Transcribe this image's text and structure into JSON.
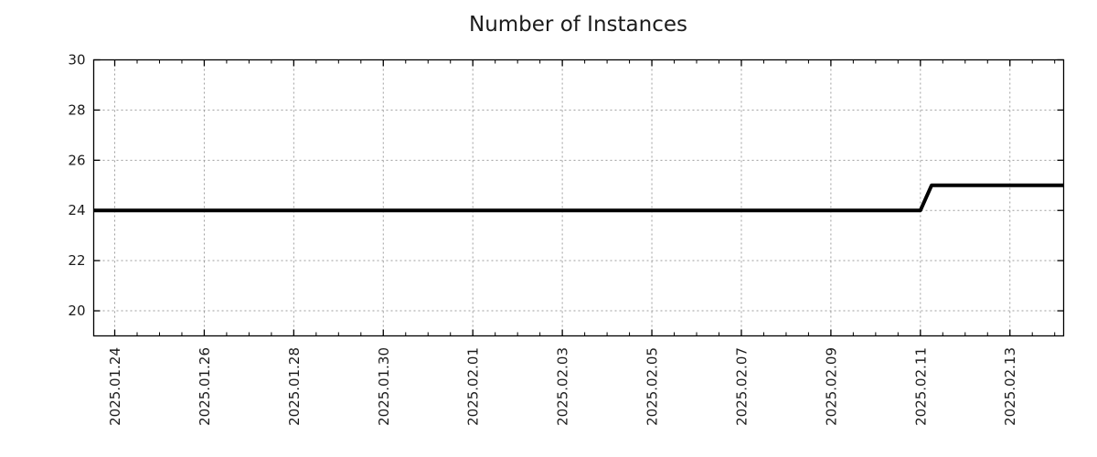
{
  "chart_data": {
    "type": "line",
    "title": "Number of Instances",
    "xlabel": "",
    "ylabel": "",
    "x_axis": {
      "days_origin": "2025.01.24",
      "range_days": [
        -0.47,
        21.2
      ],
      "minor_tick_step_days": 0.5,
      "ticks": [
        {
          "days": 0,
          "label": "2025.01.24"
        },
        {
          "days": 2,
          "label": "2025.01.26"
        },
        {
          "days": 4,
          "label": "2025.01.28"
        },
        {
          "days": 6,
          "label": "2025.01.30"
        },
        {
          "days": 8,
          "label": "2025.02.01"
        },
        {
          "days": 10,
          "label": "2025.02.03"
        },
        {
          "days": 12,
          "label": "2025.02.05"
        },
        {
          "days": 14,
          "label": "2025.02.07"
        },
        {
          "days": 16,
          "label": "2025.02.09"
        },
        {
          "days": 18,
          "label": "2025.02.11"
        },
        {
          "days": 20,
          "label": "2025.02.13"
        }
      ]
    },
    "y_axis": {
      "range": [
        19,
        30
      ],
      "ticks": [
        20,
        22,
        24,
        26,
        28,
        30
      ]
    },
    "grid": {
      "enabled": true,
      "style": "dotted",
      "color": "#9e9e9e"
    },
    "legend": {
      "visible": false
    },
    "series": [
      {
        "name": "Number of Instances",
        "color": "#000000",
        "line_width": 4,
        "points": [
          {
            "days": -0.47,
            "value": 24
          },
          {
            "days": 18.0,
            "value": 24
          },
          {
            "days": 18.25,
            "value": 25
          },
          {
            "days": 21.2,
            "value": 25
          }
        ]
      }
    ],
    "colors": {
      "axis": "#000000",
      "text": "#1c1c1c",
      "background": "#ffffff"
    }
  }
}
